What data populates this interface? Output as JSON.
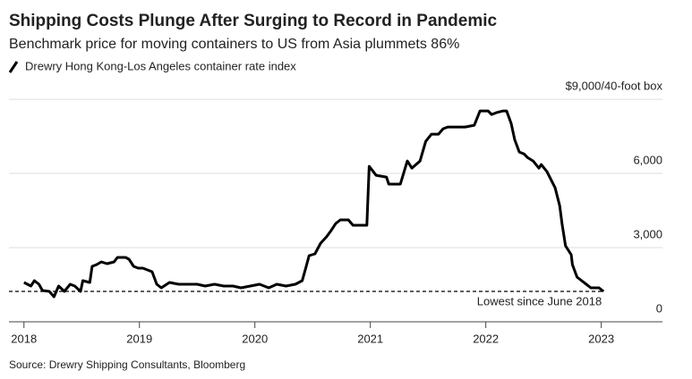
{
  "chart_data": {
    "type": "line",
    "title": "Shipping Costs Plunge After Surging to Record in Pandemic",
    "subtitle": "Benchmark price for moving containers to US from Asia plummets 86%",
    "source": "Source: Drewry Shipping Consultants, Bloomberg",
    "x": [
      2018.0,
      2018.06,
      2018.09,
      2018.13,
      2018.16,
      2018.22,
      2018.26,
      2018.3,
      2018.35,
      2018.4,
      2018.44,
      2018.49,
      2018.51,
      2018.57,
      2018.59,
      2018.63,
      2018.67,
      2018.72,
      2018.78,
      2018.81,
      2018.88,
      2018.91,
      2018.95,
      2018.99,
      2019.03,
      2019.11,
      2019.15,
      2019.19,
      2019.26,
      2019.34,
      2019.42,
      2019.5,
      2019.57,
      2019.65,
      2019.73,
      2019.81,
      2019.88,
      2019.96,
      2020.04,
      2020.12,
      2020.19,
      2020.27,
      2020.35,
      2020.41,
      2020.44,
      2020.47,
      2020.52,
      2020.57,
      2020.62,
      2020.66,
      2020.7,
      2020.74,
      2020.81,
      2020.85,
      2020.97,
      2020.99,
      2021.05,
      2021.14,
      2021.16,
      2021.26,
      2021.32,
      2021.36,
      2021.43,
      2021.48,
      2021.53,
      2021.59,
      2021.63,
      2021.67,
      2021.82,
      2021.9,
      2021.95,
      2022.02,
      2022.05,
      2022.09,
      2022.15,
      2022.18,
      2022.22,
      2022.25,
      2022.29,
      2022.33,
      2022.36,
      2022.41,
      2022.46,
      2022.48,
      2022.53,
      2022.6,
      2022.64,
      2022.66,
      2022.69,
      2022.74,
      2022.75,
      2022.79,
      2022.83,
      2022.87,
      2022.91,
      2022.98,
      2023.02
    ],
    "series": [
      {
        "name": "Drewry Hong Kong-Los Angeles container rate index",
        "color": "#000000",
        "values": [
          1590,
          1446,
          1662,
          1518,
          1265,
          1229,
          1012,
          1446,
          1229,
          1518,
          1446,
          1229,
          1662,
          1590,
          2241,
          2313,
          2421,
          2349,
          2421,
          2602,
          2602,
          2530,
          2241,
          2168,
          2168,
          2024,
          1518,
          1373,
          1590,
          1518,
          1518,
          1518,
          1446,
          1518,
          1446,
          1446,
          1373,
          1446,
          1518,
          1373,
          1518,
          1446,
          1518,
          1662,
          2168,
          2674,
          2747,
          3180,
          3433,
          3686,
          3975,
          4120,
          4120,
          3903,
          3903,
          6288,
          5927,
          5855,
          5566,
          5566,
          6505,
          6216,
          6505,
          7300,
          7589,
          7589,
          7806,
          7879,
          7879,
          7951,
          8529,
          8529,
          8384,
          8457,
          8529,
          8529,
          8023,
          7373,
          6867,
          6794,
          6650,
          6505,
          6216,
          6361,
          6072,
          5421,
          4698,
          3975,
          3072,
          2711,
          2313,
          1807,
          1662,
          1518,
          1373,
          1373,
          1229
        ]
      }
    ],
    "reference_line": {
      "value": 1229,
      "label": "Lowest since June 2018"
    },
    "xlim": [
      2017.87,
      2023.53
    ],
    "xticks": [
      2018,
      2019,
      2020,
      2021,
      2022,
      2023
    ],
    "ylim": [
      0,
      9400
    ],
    "yticks": [
      0,
      {
        "value": 3000,
        "label": "3,000"
      },
      {
        "value": 6000,
        "label": "6,000"
      },
      {
        "value": 9000,
        "label": "$9,000/40-foot box"
      }
    ],
    "grid": true
  }
}
